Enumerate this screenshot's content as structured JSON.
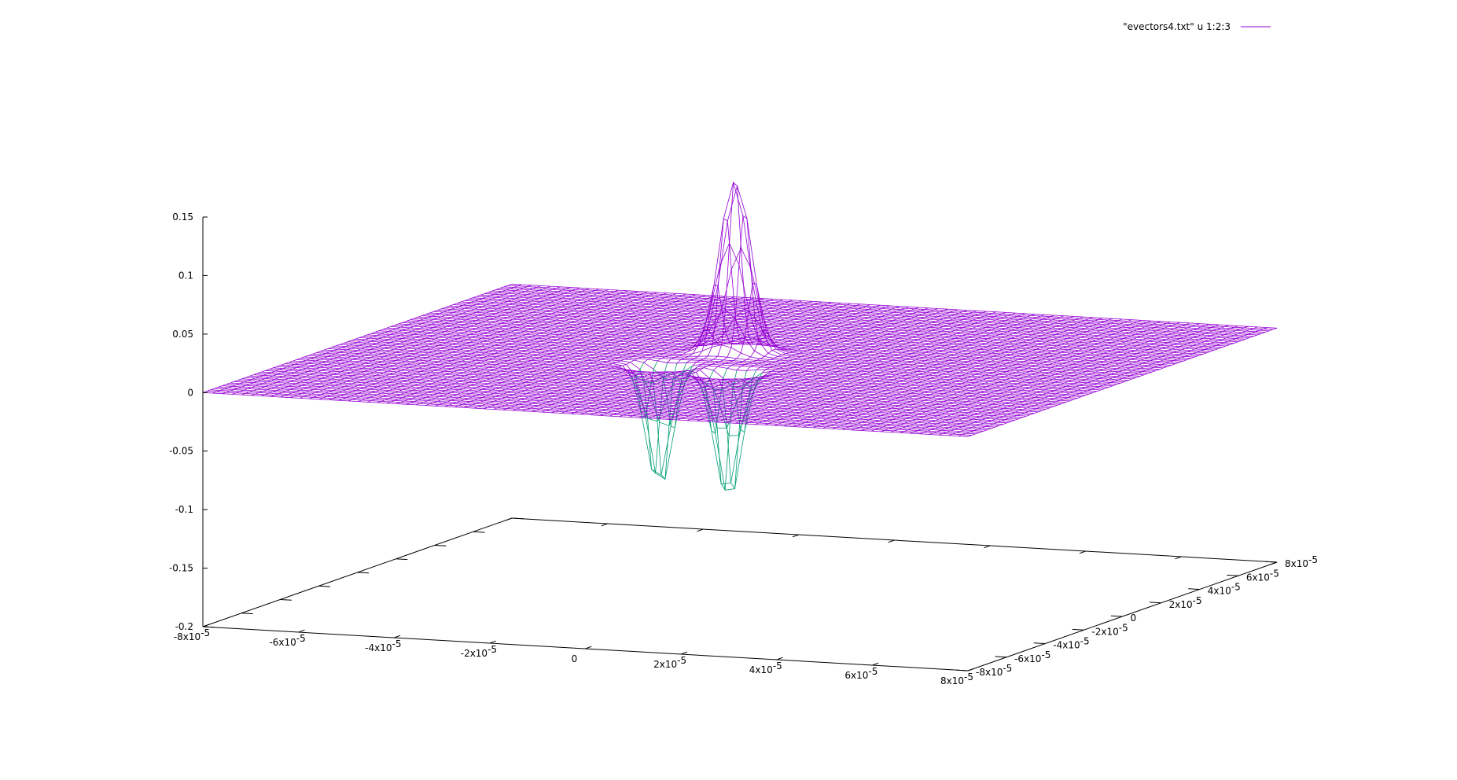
{
  "chart_data": {
    "type": "surface",
    "legend": {
      "label": "\"evectors4.txt\" u 1:2:3",
      "position": "top-right",
      "color": "#9400d3"
    },
    "colors": {
      "surface_top": "#9400d3",
      "surface_bottom": "#009e73"
    },
    "x": {
      "range": [
        -8e-05,
        8e-05
      ],
      "ticks": [
        -8e-05,
        -6e-05,
        -4e-05,
        -2e-05,
        0,
        2e-05,
        4e-05,
        6e-05,
        8e-05
      ],
      "tick_labels": [
        {
          "base": "-8x10",
          "exp": "-5"
        },
        {
          "base": "-6x10",
          "exp": "-5"
        },
        {
          "base": "-4x10",
          "exp": "-5"
        },
        {
          "base": "-2x10",
          "exp": "-5"
        },
        {
          "base": "0",
          "exp": ""
        },
        {
          "base": "2x10",
          "exp": "-5"
        },
        {
          "base": "4x10",
          "exp": "-5"
        },
        {
          "base": "6x10",
          "exp": "-5"
        },
        {
          "base": "8x10",
          "exp": "-5"
        }
      ]
    },
    "y": {
      "range": [
        -8e-05,
        8e-05
      ],
      "ticks": [
        -8e-05,
        -6e-05,
        -4e-05,
        -2e-05,
        0,
        2e-05,
        4e-05,
        6e-05,
        8e-05
      ],
      "tick_labels": [
        {
          "base": "-8x10",
          "exp": "-5"
        },
        {
          "base": "-6x10",
          "exp": "-5"
        },
        {
          "base": "-4x10",
          "exp": "-5"
        },
        {
          "base": "-2x10",
          "exp": "-5"
        },
        {
          "base": "0",
          "exp": ""
        },
        {
          "base": "2x10",
          "exp": "-5"
        },
        {
          "base": "4x10",
          "exp": "-5"
        },
        {
          "base": "6x10",
          "exp": "-5"
        },
        {
          "base": "8x10",
          "exp": "-5"
        }
      ]
    },
    "z": {
      "range": [
        -0.2,
        0.15
      ],
      "ticks": [
        0.15,
        0.1,
        0.05,
        0,
        -0.05,
        -0.1,
        -0.15,
        -0.2
      ],
      "tick_labels": [
        "0.15",
        "0.1",
        "0.05",
        "0",
        "-0.05",
        "-0.1",
        "-0.15",
        "-0.2"
      ]
    },
    "surface": {
      "grid_points": 80,
      "baseline_z": 0,
      "features": [
        {
          "kind": "peak",
          "x": -5e-06,
          "y": 1e-05,
          "z": 0.152,
          "sigma": 3e-06
        },
        {
          "kind": "trough",
          "x": -1.2e-05,
          "y": -1.2e-05,
          "z": -0.11,
          "sigma": 2.5e-06
        },
        {
          "kind": "trough",
          "x": 4e-06,
          "y": -1.6e-05,
          "z": -0.115,
          "sigma": 2.5e-06
        }
      ]
    }
  }
}
